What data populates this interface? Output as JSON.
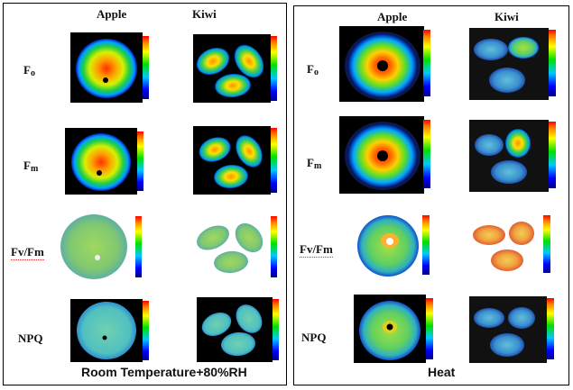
{
  "left_panel": {
    "col_headers": [
      "Apple",
      "Kiwi"
    ],
    "row_labels": [
      {
        "main": "F",
        "sub": "o"
      },
      {
        "main": "F",
        "sub": "m"
      },
      {
        "main": "Fv/Fm",
        "sub": ""
      },
      {
        "main": "NPQ",
        "sub": ""
      }
    ],
    "caption": "Room Temperature+80%RH"
  },
  "right_panel": {
    "col_headers": [
      "Apple",
      "Kiwi"
    ],
    "row_labels": [
      {
        "main": "F",
        "sub": "o"
      },
      {
        "main": "F",
        "sub": "m"
      },
      {
        "main": "Fv/Fm",
        "sub": ""
      },
      {
        "main": "NPQ",
        "sub": ""
      }
    ],
    "caption": "Heat"
  }
}
